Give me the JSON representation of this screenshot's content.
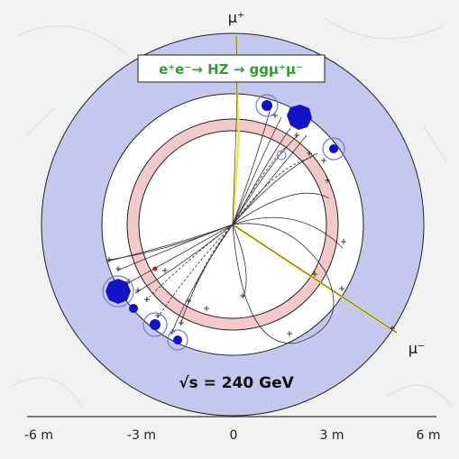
{
  "title": {
    "text": "e⁺e⁻→ HZ → ggμ⁺μ⁻"
  },
  "energy_label": "√s = 240 GeV",
  "muon_labels": {
    "top": "μ⁺",
    "bottom_right": "μ⁻"
  },
  "axis": {
    "ticks": [
      {
        "label": "-6 m",
        "value": -6
      },
      {
        "label": "-3 m",
        "value": -3
      },
      {
        "label": "0",
        "value": 0
      },
      {
        "label": "3 m",
        "value": 3
      },
      {
        "label": "6 m",
        "value": 6
      }
    ]
  },
  "colors": {
    "outer_detector": "#c5c8ee",
    "calorimeter_ring": "#f4c9c9",
    "tracker": "#ffffff",
    "muon_track": "#f3e63a",
    "title_text": "#2f9e2f",
    "energy_deposit": "#1212c8",
    "deposit_ring": "#6d7ad8",
    "track": "#333333"
  }
}
